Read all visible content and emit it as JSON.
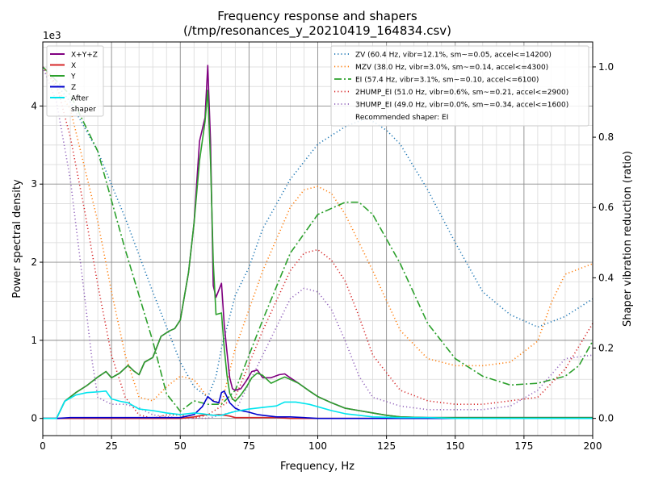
{
  "chart_data": {
    "type": "line",
    "title": "Frequency response and shapers",
    "subtitle": "(/tmp/resonances_y_20210419_164834.csv)",
    "xlabel": "Frequency, Hz",
    "ylabel": "Power spectral density",
    "y2label": "Shaper vibration reduction (ratio)",
    "y_multiplier": "1e3",
    "xlim": [
      0,
      200
    ],
    "ylim": [
      -0.22,
      4.82
    ],
    "y2lim": [
      -0.049,
      1.071
    ],
    "grid": true,
    "x_ticks": [
      "0",
      "25",
      "50",
      "75",
      "100",
      "125",
      "150",
      "175",
      "200"
    ],
    "y_ticks": [
      "0",
      "1",
      "2",
      "3",
      "4"
    ],
    "y2_ticks": [
      "0.0",
      "0.2",
      "0.4",
      "0.6",
      "0.8",
      "1.0"
    ],
    "legend_left_position": "top-left",
    "legend_right_position": "top-right",
    "psd_series": [
      {
        "name": "X+Y+Z",
        "color": "#800080",
        "width": 1.6,
        "x": [
          0,
          5,
          8,
          12,
          16,
          20,
          23,
          25,
          28,
          31,
          33,
          35,
          37,
          40,
          43,
          46,
          48,
          50,
          53,
          55,
          57,
          58,
          59,
          60,
          61,
          62,
          63,
          65,
          66,
          67,
          68,
          69,
          70,
          72,
          74,
          76,
          78,
          80,
          83,
          86,
          88,
          90,
          93,
          97,
          100,
          105,
          110,
          115,
          120,
          125,
          130,
          140,
          150,
          160,
          170,
          180,
          190,
          200
        ],
        "y": [
          0,
          0,
          0.22,
          0.33,
          0.42,
          0.53,
          0.6,
          0.52,
          0.58,
          0.68,
          0.61,
          0.56,
          0.72,
          0.78,
          1.05,
          1.12,
          1.15,
          1.26,
          1.87,
          2.5,
          3.55,
          3.7,
          3.85,
          4.52,
          3.55,
          1.7,
          1.55,
          1.73,
          1.2,
          0.85,
          0.52,
          0.38,
          0.36,
          0.38,
          0.48,
          0.6,
          0.62,
          0.52,
          0.52,
          0.56,
          0.57,
          0.52,
          0.45,
          0.35,
          0.28,
          0.2,
          0.13,
          0.1,
          0.07,
          0.04,
          0.02,
          0.01,
          0.01,
          0.01,
          0.01,
          0.01,
          0.01,
          0.01
        ]
      },
      {
        "name": "X",
        "color": "#d62728",
        "width": 1.6,
        "x": [
          0,
          20,
          40,
          50,
          55,
          58,
          60,
          62,
          64,
          66,
          68,
          70,
          75,
          80,
          85,
          90,
          100,
          200
        ],
        "y": [
          0,
          0,
          0,
          0,
          0.02,
          0.04,
          0.05,
          0.04,
          0.05,
          0.04,
          0.03,
          0.01,
          0.01,
          0.01,
          0.01,
          0,
          0,
          0
        ]
      },
      {
        "name": "Y",
        "color": "#2ca02c",
        "width": 1.6,
        "x": [
          0,
          5,
          8,
          12,
          16,
          20,
          23,
          25,
          28,
          31,
          33,
          35,
          37,
          40,
          43,
          46,
          48,
          50,
          53,
          55,
          57,
          58,
          59,
          60,
          61,
          62,
          63,
          65,
          66,
          67,
          68,
          69,
          70,
          72,
          74,
          76,
          78,
          80,
          83,
          86,
          88,
          90,
          93,
          97,
          100,
          105,
          110,
          115,
          120,
          125,
          130,
          140,
          150,
          160,
          170,
          180,
          190,
          200
        ],
        "y": [
          0,
          0,
          0.22,
          0.33,
          0.42,
          0.53,
          0.6,
          0.52,
          0.58,
          0.68,
          0.61,
          0.56,
          0.72,
          0.78,
          1.05,
          1.12,
          1.15,
          1.26,
          1.87,
          2.5,
          3.3,
          3.55,
          3.8,
          4.2,
          3.3,
          2.0,
          1.33,
          1.35,
          0.9,
          0.55,
          0.32,
          0.25,
          0.22,
          0.3,
          0.4,
          0.52,
          0.58,
          0.55,
          0.45,
          0.5,
          0.53,
          0.5,
          0.45,
          0.35,
          0.28,
          0.2,
          0.13,
          0.1,
          0.07,
          0.04,
          0.02,
          0.01,
          0.01,
          0.01,
          0.01,
          0.01,
          0.01,
          0.01
        ]
      },
      {
        "name": "Z",
        "color": "#0000cd",
        "width": 1.6,
        "x": [
          0,
          5,
          10,
          20,
          25,
          30,
          40,
          50,
          55,
          58,
          60,
          62,
          64,
          65,
          66,
          68,
          70,
          72,
          75,
          78,
          80,
          85,
          90,
          95,
          100,
          200
        ],
        "y": [
          0,
          0,
          0.01,
          0.01,
          0.01,
          0.01,
          0.01,
          0.01,
          0.05,
          0.15,
          0.28,
          0.22,
          0.2,
          0.33,
          0.35,
          0.2,
          0.13,
          0.1,
          0.08,
          0.05,
          0.04,
          0.02,
          0.02,
          0.01,
          0,
          0
        ]
      },
      {
        "name": "After\nshaper",
        "color": "#00e5ee",
        "width": 1.6,
        "x": [
          0,
          5,
          8,
          12,
          16,
          20,
          23,
          25,
          28,
          31,
          35,
          40,
          45,
          50,
          55,
          58,
          60,
          62,
          65,
          68,
          70,
          75,
          80,
          85,
          88,
          92,
          97,
          100,
          105,
          110,
          115,
          120,
          130,
          140,
          150,
          200
        ],
        "y": [
          0,
          0,
          0.22,
          0.3,
          0.33,
          0.34,
          0.35,
          0.25,
          0.22,
          0.2,
          0.12,
          0.1,
          0.07,
          0.05,
          0.07,
          0.06,
          0.05,
          0.04,
          0.04,
          0.07,
          0.09,
          0.12,
          0.14,
          0.16,
          0.21,
          0.21,
          0.18,
          0.15,
          0.1,
          0.06,
          0.04,
          0.02,
          0.01,
          0.01,
          0,
          0
        ]
      }
    ],
    "shaper_series": [
      {
        "name": "ZV (60.4 Hz, vibr=12.1%, sm~=0.05, accel<=14200)",
        "color": "#1f77b4",
        "style": "dotted",
        "x": [
          0,
          10,
          20,
          30,
          40,
          50,
          55,
          60,
          63,
          65,
          70,
          75,
          80,
          90,
          100,
          110,
          118,
          125,
          130,
          140,
          150,
          160,
          170,
          180,
          190,
          200
        ],
        "y": [
          1.0,
          0.9,
          0.76,
          0.57,
          0.36,
          0.16,
          0.09,
          0.06,
          0.12,
          0.2,
          0.35,
          0.43,
          0.54,
          0.68,
          0.78,
          0.83,
          0.855,
          0.82,
          0.78,
          0.65,
          0.5,
          0.36,
          0.295,
          0.26,
          0.29,
          0.34
        ]
      },
      {
        "name": "MZV (38.0 Hz, vibr=3.0%, sm~=0.14, accel<=4300)",
        "color": "#ff7f0e",
        "style": "dotted",
        "x": [
          0,
          10,
          20,
          25,
          30,
          35,
          40,
          45,
          50,
          55,
          60,
          65,
          70,
          80,
          90,
          95,
          100,
          105,
          110,
          120,
          130,
          140,
          150,
          160,
          170,
          180,
          185,
          190,
          200
        ],
        "y": [
          1.0,
          0.88,
          0.56,
          0.36,
          0.18,
          0.06,
          0.05,
          0.09,
          0.12,
          0.11,
          0.06,
          0.04,
          0.2,
          0.42,
          0.6,
          0.65,
          0.66,
          0.64,
          0.58,
          0.42,
          0.25,
          0.17,
          0.15,
          0.15,
          0.16,
          0.22,
          0.33,
          0.41,
          0.44
        ]
      },
      {
        "name": "EI (57.4 Hz, vibr=3.1%, sm~=0.10, accel<=6100)",
        "color": "#2ca02c",
        "style": "dashdot",
        "x": [
          0,
          10,
          20,
          30,
          40,
          45,
          50,
          55,
          60,
          65,
          70,
          80,
          90,
          100,
          110,
          115,
          120,
          130,
          140,
          150,
          160,
          170,
          180,
          190,
          195,
          200
        ],
        "y": [
          1.0,
          0.92,
          0.76,
          0.48,
          0.22,
          0.07,
          0.02,
          0.05,
          0.04,
          0.04,
          0.08,
          0.28,
          0.47,
          0.58,
          0.615,
          0.615,
          0.58,
          0.44,
          0.27,
          0.17,
          0.12,
          0.095,
          0.1,
          0.12,
          0.15,
          0.22
        ]
      },
      {
        "name": "2HUMP_EI (51.0 Hz, vibr=0.6%, sm~=0.21, accel<=2900)",
        "color": "#d62728",
        "style": "dotted",
        "x": [
          0,
          5,
          10,
          15,
          20,
          25,
          30,
          35,
          40,
          45,
          50,
          55,
          60,
          70,
          80,
          90,
          95,
          100,
          105,
          110,
          115,
          120,
          130,
          140,
          150,
          160,
          170,
          180,
          190,
          200
        ],
        "y": [
          1.0,
          0.95,
          0.8,
          0.6,
          0.38,
          0.18,
          0.06,
          0.01,
          0.0,
          0.01,
          0.01,
          0.0,
          0.01,
          0.06,
          0.25,
          0.42,
          0.47,
          0.48,
          0.45,
          0.39,
          0.29,
          0.18,
          0.08,
          0.05,
          0.04,
          0.04,
          0.05,
          0.06,
          0.14,
          0.27
        ]
      },
      {
        "name": "3HUMP_EI (49.0 Hz, vibr=0.0%, sm~=0.34, accel<=1600)",
        "color": "#9467bd",
        "style": "dotted",
        "x": [
          0,
          5,
          10,
          15,
          18,
          20,
          25,
          30,
          35,
          40,
          50,
          60,
          70,
          80,
          90,
          95,
          100,
          105,
          110,
          115,
          120,
          130,
          140,
          150,
          160,
          170,
          180,
          190,
          200
        ],
        "y": [
          1.0,
          0.9,
          0.68,
          0.36,
          0.16,
          0.06,
          0.04,
          0.04,
          0.03,
          0.01,
          0.0,
          0.0,
          0.02,
          0.18,
          0.34,
          0.37,
          0.36,
          0.31,
          0.22,
          0.12,
          0.06,
          0.035,
          0.025,
          0.025,
          0.025,
          0.035,
          0.08,
          0.17,
          0.18
        ]
      }
    ],
    "recommended": "Recommended shaper: EI"
  }
}
